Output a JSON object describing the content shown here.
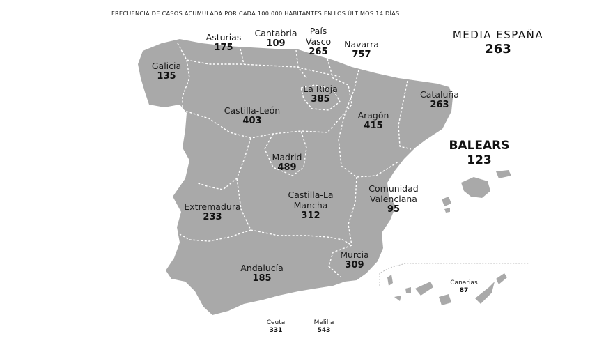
{
  "title": "FRECUENCIA DE CASOS ACUMULADA POR CADA 100.000 HABITANTES EN LOS ÚLTIMOS 14 DÍAS",
  "average": {
    "label": "MEDIA ESPAÑA",
    "value": "263"
  },
  "map_color": "#a9a9a9",
  "regions": {
    "galicia": {
      "name": "Galicia",
      "value": "135"
    },
    "asturias": {
      "name": "Asturias",
      "value": "175"
    },
    "cantabria": {
      "name": "Cantabria",
      "value": "109"
    },
    "pais_vasco": {
      "name": "País Vasco",
      "value": "265"
    },
    "navarra": {
      "name": "Navarra",
      "value": "757"
    },
    "la_rioja": {
      "name": "La Rioja",
      "value": "385"
    },
    "castilla_leon": {
      "name": "Castilla-León",
      "value": "403"
    },
    "aragon": {
      "name": "Aragón",
      "value": "415"
    },
    "cataluna": {
      "name": "Cataluña",
      "value": "263"
    },
    "madrid": {
      "name": "Madrid",
      "value": "489"
    },
    "castilla_la_mancha": {
      "name": "Castilla-La Mancha",
      "value": "312"
    },
    "extremadura": {
      "name": "Extremadura",
      "value": "233"
    },
    "comunidad_valenciana": {
      "name": "Comunidad Valenciana",
      "value": "95"
    },
    "baleares": {
      "name": "BALEARS",
      "value": "123"
    },
    "murcia": {
      "name": "Murcia",
      "value": "309"
    },
    "andalucia": {
      "name": "Andalucía",
      "value": "185"
    },
    "canarias": {
      "name": "Canarias",
      "value": "87"
    },
    "ceuta": {
      "name": "Ceuta",
      "value": "331"
    },
    "melilla": {
      "name": "Melilla",
      "value": "543"
    }
  }
}
